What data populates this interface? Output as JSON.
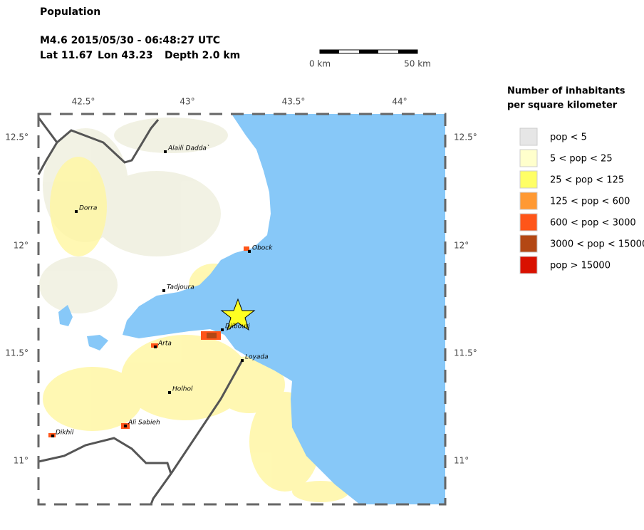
{
  "header": {
    "title": "Population",
    "event": "M4.6  2015/05/30 - 06:48:27 UTC",
    "lat": "Lat 11.67",
    "lon": "Lon  43.23",
    "depth": "Depth  2.0 km"
  },
  "scale_bar": {
    "start": "0 km",
    "end": "50 km"
  },
  "map": {
    "x_ticks": [
      "42.5°",
      "43°",
      "43.5°",
      "44°"
    ],
    "y_ticks": [
      "12.5°",
      "12°",
      "11.5°",
      "11°"
    ],
    "cities": [
      "Alaili Dadda`",
      "Dorra",
      "Obock",
      "Tadjoura",
      "Djibouti",
      "Arta",
      "Loyada",
      "Holhol",
      "Ali Sabieh",
      "Dikhil"
    ]
  },
  "legend": {
    "title": [
      "Number of inhabitants",
      "per square kilometer"
    ],
    "entries": [
      {
        "label": "pop < 5",
        "color": "#e6e6e6"
      },
      {
        "label": "5 < pop < 25",
        "color": "#ffffcc"
      },
      {
        "label": "25 < pop < 125",
        "color": "#ffff66"
      },
      {
        "label": "125 < pop < 600",
        "color": "#ff9933"
      },
      {
        "label": "600 < pop < 3000",
        "color": "#ff5519"
      },
      {
        "label": "3000 < pop < 15000",
        "color": "#b34714"
      },
      {
        "label": "pop > 15000",
        "color": "#d91100"
      }
    ]
  }
}
